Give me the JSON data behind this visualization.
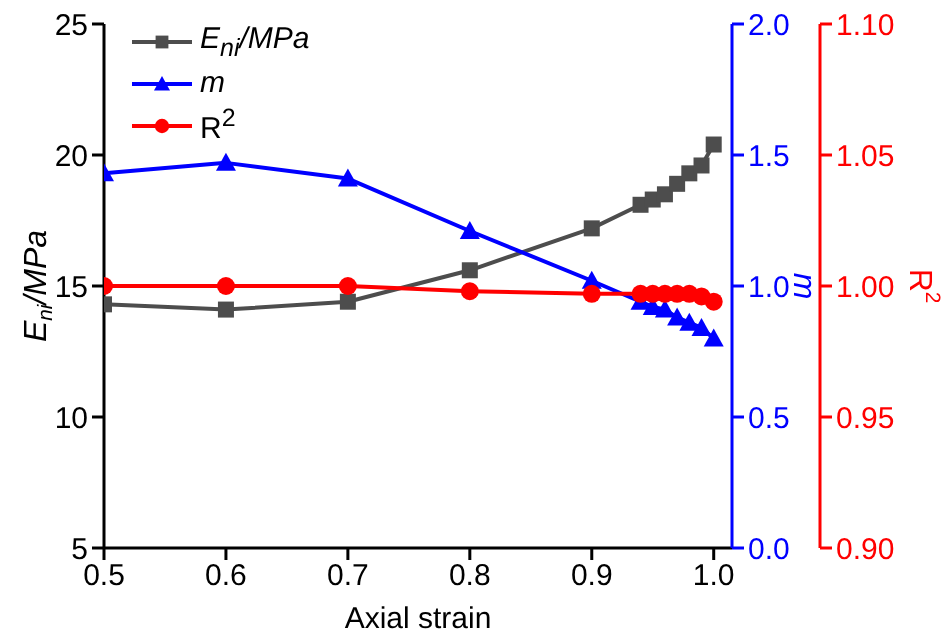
{
  "chart_data": {
    "type": "line",
    "xlabel": "Axial strain",
    "ylabel": "E$_{ni}$/MPa",
    "y2label": "m",
    "y3label": "R$^{2}$",
    "x": [
      0.5,
      0.6,
      0.7,
      0.8,
      0.9,
      0.94,
      0.95,
      0.96,
      0.97,
      0.98,
      0.99,
      1.0
    ],
    "xlim": [
      0.5,
      1.015
    ],
    "xticks": [
      0.5,
      0.6,
      0.7,
      0.8,
      0.9,
      {
        "value": 1.0,
        "label": "1.0"
      }
    ],
    "ylim": [
      5,
      25
    ],
    "yticks": [
      5,
      10,
      15,
      20,
      25
    ],
    "y2lim": [
      0,
      2
    ],
    "y2ticks": [
      {
        "value": 0,
        "label": "0.0"
      },
      0.5,
      {
        "value": 1,
        "label": "1.0"
      },
      1.5,
      {
        "value": 2,
        "label": "2.0"
      }
    ],
    "y3lim": [
      0.9,
      1.1
    ],
    "y3ticks": [
      {
        "value": 0.9,
        "label": "0.90"
      },
      0.95,
      {
        "value": 1.0,
        "label": "1.00"
      },
      1.05,
      {
        "value": 1.1,
        "label": "1.10"
      }
    ],
    "legend": "top left",
    "line_style": "solid",
    "series": [
      {
        "name": "E$_{ni}$/MPa",
        "color": "#4d4d4d",
        "marker": "square",
        "values": [
          14.3,
          14.1,
          14.4,
          15.6,
          17.2,
          18.1,
          18.3,
          18.5,
          18.9,
          19.3,
          19.6,
          20.4
        ]
      },
      {
        "name": "m",
        "color": "#0000ff",
        "marker": "triangle",
        "axis": "y2",
        "values": [
          1.43,
          1.47,
          1.41,
          1.21,
          1.02,
          0.94,
          0.92,
          0.91,
          0.88,
          0.86,
          0.84,
          0.8
        ]
      },
      {
        "name": "R$^{2}$",
        "color": "#ff0000",
        "marker": "circle",
        "axis": "y3",
        "values": [
          1.0,
          1.0,
          1.0,
          0.998,
          0.997,
          0.997,
          0.997,
          0.997,
          0.997,
          0.997,
          0.996,
          0.994
        ]
      }
    ]
  }
}
